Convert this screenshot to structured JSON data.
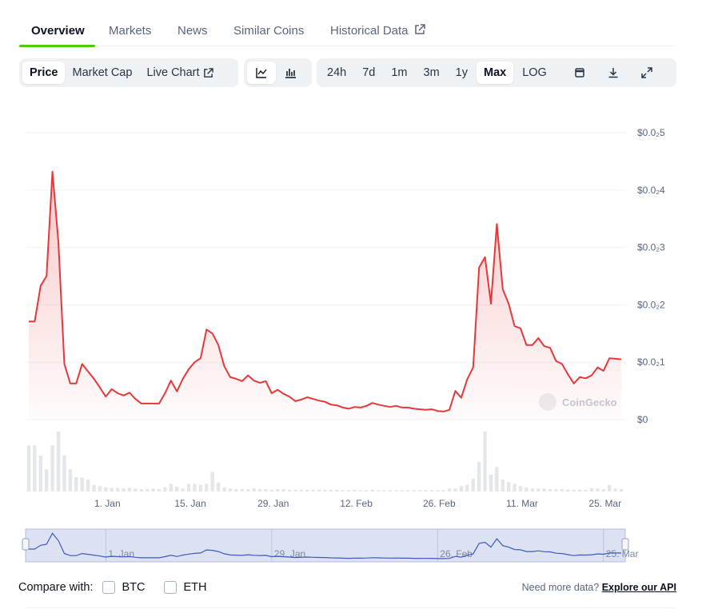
{
  "tabs": [
    "Overview",
    "Markets",
    "News",
    "Similar Coins",
    "Historical Data"
  ],
  "toolbar": {
    "data_types": [
      "Price",
      "Market Cap",
      "Live Chart"
    ],
    "ranges": [
      "24h",
      "7d",
      "1m",
      "3m",
      "1y",
      "Max"
    ],
    "log": "LOG"
  },
  "chart_data": {
    "type": "line",
    "watermark": "CoinGecko",
    "categories": [
      null,
      null,
      null,
      null,
      null,
      null,
      null,
      null,
      null,
      null,
      null,
      null,
      null,
      "1. Jan",
      null,
      null,
      null,
      null,
      null,
      null,
      null,
      null,
      null,
      null,
      null,
      null,
      null,
      "15. Jan",
      null,
      null,
      null,
      null,
      null,
      null,
      null,
      null,
      null,
      null,
      null,
      null,
      null,
      "29. Jan",
      null,
      null,
      null,
      null,
      null,
      null,
      null,
      null,
      null,
      null,
      null,
      null,
      null,
      "12. Feb",
      null,
      null,
      null,
      null,
      null,
      null,
      null,
      null,
      null,
      null,
      null,
      null,
      null,
      "26. Feb",
      null,
      null,
      null,
      null,
      null,
      null,
      null,
      null,
      null,
      null,
      null,
      null,
      null,
      "11. Mar",
      null,
      null,
      null,
      null,
      null,
      null,
      null,
      null,
      null,
      null,
      null,
      null,
      null,
      "25. Mar",
      null,
      null,
      null
    ],
    "series": [
      {
        "color": "#e5383b",
        "values": [
          0.00171,
          0.00171,
          0.00233,
          0.0025,
          0.00432,
          0.0031,
          0.00097,
          0.00063,
          0.00063,
          0.00097,
          0.00084,
          0.00071,
          0.00056,
          0.0004,
          0.00053,
          0.00046,
          0.00042,
          0.00047,
          0.00036,
          0.00028,
          0.00028,
          0.00028,
          0.00028,
          0.00046,
          0.00068,
          0.00049,
          0.00071,
          0.00088,
          0.001,
          0.00107,
          0.00157,
          0.0015,
          0.0013,
          0.00093,
          0.00074,
          0.00071,
          0.00067,
          0.00077,
          0.00068,
          0.00064,
          0.00067,
          0.00046,
          0.00052,
          0.00045,
          0.0004,
          0.00032,
          0.00035,
          0.00039,
          0.00036,
          0.00033,
          0.00031,
          0.00026,
          0.00025,
          0.00021,
          0.00019,
          0.00022,
          0.00021,
          0.00024,
          0.00029,
          0.00026,
          0.00024,
          0.00022,
          0.00024,
          0.00021,
          0.00021,
          0.00019,
          0.00018,
          0.00017,
          0.00018,
          0.00015,
          0.00014,
          0.00017,
          0.0005,
          0.00038,
          0.0007,
          0.00091,
          0.00265,
          0.00283,
          0.00202,
          0.00341,
          0.00227,
          0.00202,
          0.00163,
          0.00159,
          0.0013,
          0.0013,
          0.00142,
          0.00128,
          0.00125,
          0.00102,
          0.00097,
          0.00079,
          0.00063,
          0.00074,
          0.00072,
          0.00077,
          0.00091,
          0.00085,
          0.00107,
          0.00106,
          0.00105
        ]
      }
    ],
    "volume": {
      "color": "#e3e6ea",
      "ylim": [
        0,
        100
      ],
      "values": [
        77,
        77,
        60,
        37,
        77,
        100,
        60,
        37,
        24,
        23,
        20,
        11,
        9,
        7,
        6,
        6,
        5,
        6,
        5,
        4,
        4,
        5,
        4,
        7,
        13,
        8,
        5,
        13,
        13,
        11,
        13,
        33,
        15,
        7,
        5,
        4,
        4,
        4,
        5,
        4,
        4,
        3,
        4,
        4,
        3,
        3,
        3,
        3,
        3,
        3,
        3,
        3,
        3,
        2,
        2,
        3,
        2,
        2,
        3,
        2,
        2,
        2,
        2,
        2,
        2,
        2,
        2,
        2,
        2,
        2,
        2,
        5,
        5,
        9,
        11,
        21,
        49,
        100,
        28,
        41,
        20,
        16,
        13,
        9,
        7,
        5,
        5,
        5,
        4,
        4,
        4,
        3,
        3,
        3,
        3,
        6,
        5,
        4,
        11,
        5,
        4
      ]
    },
    "navigator_color": "#3a5bbf",
    "ylim": [
      0,
      0.005
    ],
    "yticks": [
      {
        "value": 0,
        "label": "$0"
      },
      {
        "value": 0.001,
        "label": "$0.0₂1"
      },
      {
        "value": 0.002,
        "label": "$0.0₂2"
      },
      {
        "value": 0.003,
        "label": "$0.0₂3"
      },
      {
        "value": 0.004,
        "label": "$0.0₂4"
      },
      {
        "value": 0.005,
        "label": "$0.0₂5"
      }
    ],
    "grid": true
  },
  "compare": {
    "label": "Compare with:",
    "options": [
      "BTC",
      "ETH"
    ]
  },
  "api": {
    "text": "Need more data?",
    "link": "Explore our API"
  }
}
